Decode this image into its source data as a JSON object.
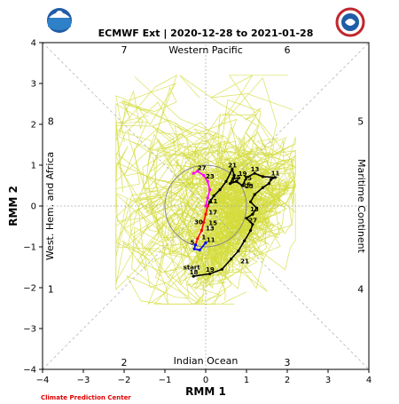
{
  "chart_data": {
    "type": "line",
    "title": "ECMWF Ext | 2020-12-28 to 2021-01-28",
    "xlabel": "RMM 1",
    "ylabel": "RMM 2",
    "xlim": [
      -4,
      4
    ],
    "ylim": [
      -4,
      4
    ],
    "xticks": [
      -4,
      -3,
      -2,
      -1,
      0,
      1,
      2,
      3,
      4
    ],
    "yticks": [
      -4,
      -3,
      -2,
      -1,
      0,
      1,
      2,
      3,
      4
    ],
    "grid": false,
    "phases": [
      "1",
      "2",
      "3",
      "4",
      "5",
      "6",
      "7",
      "8"
    ],
    "regions": {
      "top": "Western Pacific",
      "bottom": "Indian Ocean",
      "left": "West. Hem. and Africa",
      "right": "Maritime Continent"
    },
    "start_label": "start",
    "series": [
      {
        "color": "#000000",
        "points": [
          {
            "x": -0.3,
            "y": -1.72,
            "label": "18"
          },
          {
            "x": 0.1,
            "y": -1.66,
            "label": "19"
          },
          {
            "x": 0.4,
            "y": -1.55
          },
          {
            "x": 0.62,
            "y": -1.3
          },
          {
            "x": 0.8,
            "y": -1.1
          },
          {
            "x": 0.95,
            "y": -0.85
          },
          {
            "x": 1.1,
            "y": -0.6
          },
          {
            "x": 1.15,
            "y": -0.45,
            "label": "27"
          },
          {
            "x": 1.0,
            "y": -0.3
          },
          {
            "x": 1.15,
            "y": -0.2
          },
          {
            "x": 1.25,
            "y": -0.05
          },
          {
            "x": 1.1,
            "y": 0.1
          },
          {
            "x": 1.2,
            "y": 0.28
          },
          {
            "x": 1.4,
            "y": 0.45
          },
          {
            "x": 1.55,
            "y": 0.55
          },
          {
            "x": 1.6,
            "y": 0.65
          },
          {
            "x": 1.7,
            "y": 0.7,
            "label": "11"
          },
          {
            "x": 1.4,
            "y": 0.72
          },
          {
            "x": 1.2,
            "y": 0.8,
            "label": "13"
          },
          {
            "x": 1.0,
            "y": 0.7
          },
          {
            "x": 0.9,
            "y": 0.5
          },
          {
            "x": 0.75,
            "y": 0.6,
            "label": "15"
          },
          {
            "x": 0.6,
            "y": 0.55
          },
          {
            "x": 0.7,
            "y": 0.75
          },
          {
            "x": 0.65,
            "y": 0.9,
            "label": "21"
          },
          {
            "x": 0.5,
            "y": 0.6
          },
          {
            "x": 0.35,
            "y": 0.4
          },
          {
            "x": 0.2,
            "y": 0.25
          },
          {
            "x": 0.1,
            "y": 0.1
          },
          {
            "x": 0.05,
            "y": 0.0
          }
        ]
      },
      {
        "color": "#ff0000",
        "points": [
          {
            "x": 0.05,
            "y": 0.0
          },
          {
            "x": 0.0,
            "y": -0.2
          },
          {
            "x": -0.05,
            "y": -0.4
          },
          {
            "x": -0.1,
            "y": -0.6
          },
          {
            "x": -0.2,
            "y": -0.8
          },
          {
            "x": -0.25,
            "y": -0.95
          }
        ]
      },
      {
        "color": "#0000ff",
        "points": [
          {
            "x": -0.25,
            "y": -0.95
          },
          {
            "x": -0.28,
            "y": -1.05
          },
          {
            "x": -0.15,
            "y": -1.08
          },
          {
            "x": 0.0,
            "y": -0.9
          }
        ]
      },
      {
        "color": "#ff00ff",
        "points": [
          {
            "x": 0.0,
            "y": 0.0
          },
          {
            "x": 0.05,
            "y": 0.2
          },
          {
            "x": 0.1,
            "y": 0.4
          },
          {
            "x": 0.05,
            "y": 0.6
          },
          {
            "x": -0.05,
            "y": 0.75
          },
          {
            "x": -0.2,
            "y": 0.85
          },
          {
            "x": -0.3,
            "y": 0.8
          }
        ]
      }
    ],
    "annotations": [
      {
        "x": -0.2,
        "y": 0.88,
        "text": "27"
      },
      {
        "x": 0.0,
        "y": 0.67,
        "text": "23"
      },
      {
        "x": 0.08,
        "y": 0.06,
        "text": "11"
      },
      {
        "x": -0.28,
        "y": -0.45,
        "text": "30"
      },
      {
        "x": 0.0,
        "y": -0.6,
        "text": "13"
      },
      {
        "x": -0.1,
        "y": -0.82,
        "text": "1"
      },
      {
        "x": -0.38,
        "y": -0.95,
        "text": "5"
      },
      {
        "x": 0.02,
        "y": -0.88,
        "text": "11"
      },
      {
        "x": 0.07,
        "y": -0.21,
        "text": "17"
      },
      {
        "x": 0.07,
        "y": -0.47,
        "text": "15"
      },
      {
        "x": 0.9,
        "y": 0.47,
        "text": "15"
      },
      {
        "x": 1.09,
        "y": -0.13,
        "text": "13"
      },
      {
        "x": 0.85,
        "y": -1.4,
        "text": "21"
      },
      {
        "x": 0.8,
        "y": 0.74,
        "text": "19"
      },
      {
        "x": 0.62,
        "y": 0.59,
        "text": "17"
      },
      {
        "x": 0.92,
        "y": 0.63,
        "text": "15"
      },
      {
        "x": 0.96,
        "y": 0.43,
        "text": "23"
      }
    ]
  },
  "footer": {
    "credit": "Climate Prediction Center"
  },
  "logos": {
    "left": "NOAA",
    "right": "NATIONAL WEATHER SERVICE"
  },
  "colors": {
    "ensemble": "#d4dc3c",
    "observed": "#000000",
    "week1": "#ff0000",
    "week2": "#0000ff",
    "week3": "#ff00ff"
  }
}
